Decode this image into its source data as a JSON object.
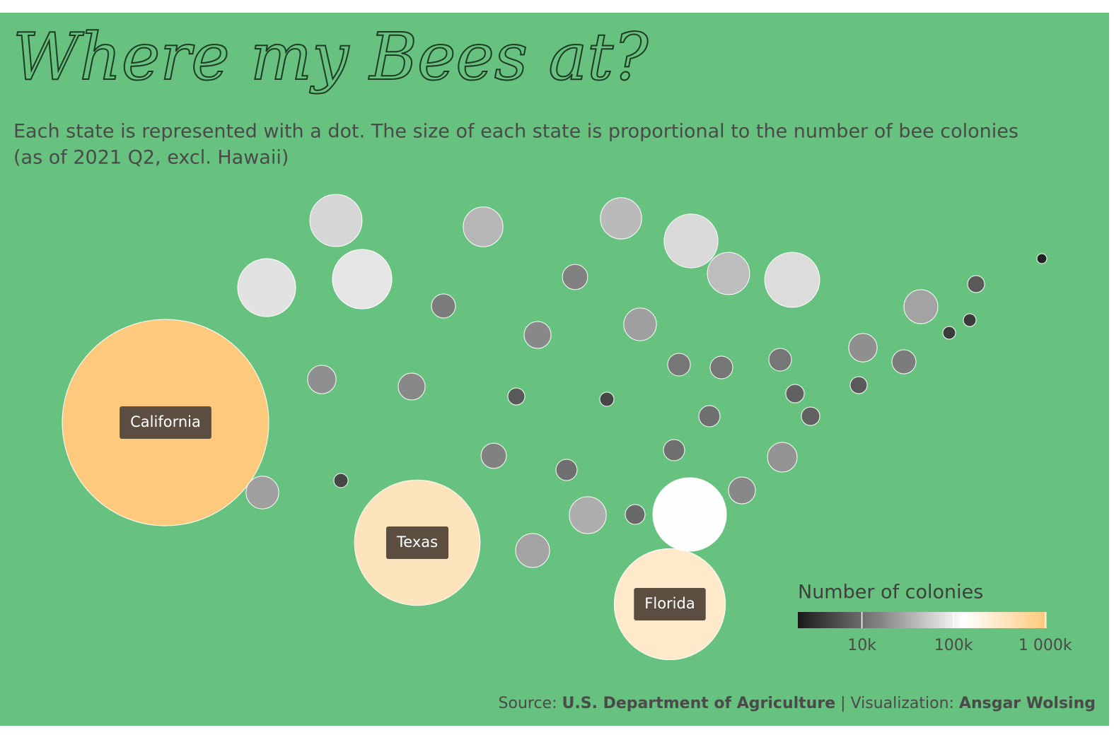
{
  "chart_data": {
    "type": "bubble",
    "title": "Where my Bees at?",
    "subtitle": [
      "Each state is represented with a dot. The size of each state is proportional to the number of bee colonies",
      "(as of 2021 Q2, excl. Hawaii)"
    ],
    "categories": [
      "California",
      "Texas",
      "Florida",
      null,
      null,
      null,
      null,
      null,
      null,
      null,
      null,
      null,
      null,
      null,
      null,
      null,
      null,
      null,
      null,
      null,
      null,
      null,
      null,
      null,
      null,
      null,
      null,
      null,
      null,
      null,
      null,
      null,
      null,
      null,
      null,
      null,
      null,
      null,
      null,
      null,
      null,
      null,
      null,
      null
    ],
    "values": [
      1000000,
      370000,
      290000,
      64000,
      79000,
      83000,
      37000,
      40000,
      68000,
      42000,
      71000,
      13500,
      15000,
      17000,
      25000,
      19000,
      17000,
      6800,
      4700,
      12000,
      12000,
      12000,
      8000,
      8000,
      10500,
      6800,
      19000,
      13500,
      27000,
      6800,
      3800,
      3800,
      2300,
      25000,
      4700,
      15000,
      10500,
      10500,
      20700,
      17000,
      32000,
      9200,
      127000,
      27000
    ],
    "legend_title": "Number of colonies",
    "colorlim": [
      2000,
      1040000
    ],
    "log_color": true,
    "colors": [
      "#1a1a1a",
      "#858585",
      "#ffffff",
      "#fdc97a"
    ],
    "colorticks": [
      {
        "value": 10000,
        "label": "10k"
      },
      {
        "value": 100000,
        "label": "100k"
      },
      {
        "value": 1000000,
        "label": "1 000k"
      }
    ],
    "background": "#67c27f",
    "source_label": "Source:",
    "source": "U.S. Department of Agriculture",
    "separator": "|",
    "credit_label": "Visualization:",
    "credit": "Ansgar Wolsing"
  }
}
